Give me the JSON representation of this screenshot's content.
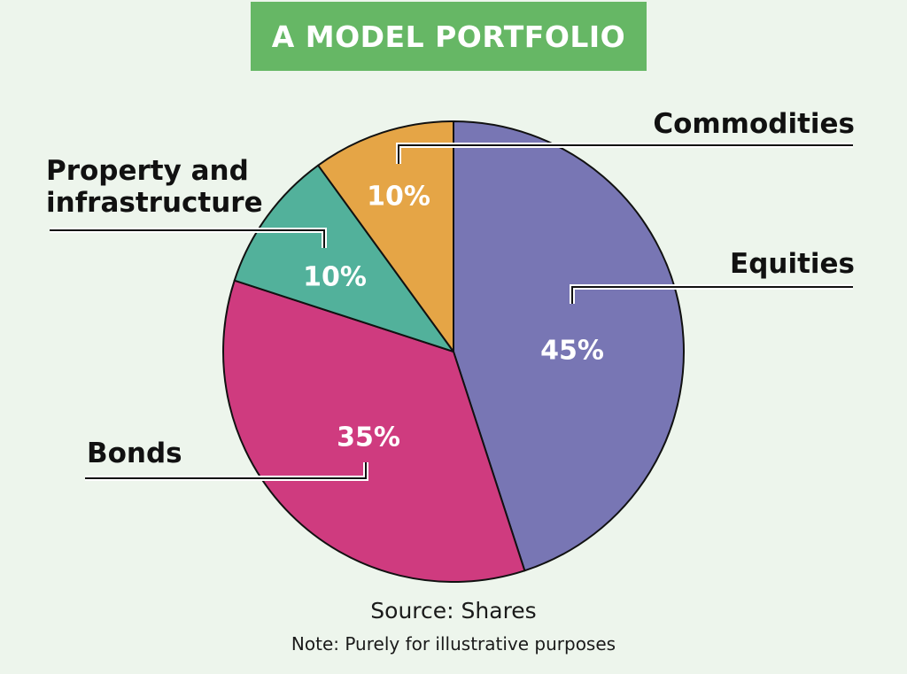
{
  "title": "A MODEL PORTFOLIO",
  "source": "Source: Shares",
  "note": "Note: Purely for illustrative purposes",
  "colors": {
    "background": "#edf5ec",
    "title_bg": "#66b765",
    "equities": "#7876b4",
    "bonds": "#cf3b7f",
    "property": "#52b19b",
    "commodities": "#e5a546"
  },
  "chart_data": {
    "type": "pie",
    "title": "A MODEL PORTFOLIO",
    "slices": [
      {
        "label": "Equities",
        "value": 45,
        "value_label": "45%",
        "color": "#7876b4"
      },
      {
        "label": "Bonds",
        "value": 35,
        "value_label": "35%",
        "color": "#cf3b7f"
      },
      {
        "label": "Property and infrastructure",
        "label_lines": [
          "Property and",
          "infrastructure"
        ],
        "value": 10,
        "value_label": "10%",
        "color": "#52b19b"
      },
      {
        "label": "Commodities",
        "value": 10,
        "value_label": "10%",
        "color": "#e5a546"
      }
    ],
    "start_angle": "12 o'clock",
    "direction": "clockwise",
    "legend": "none"
  }
}
